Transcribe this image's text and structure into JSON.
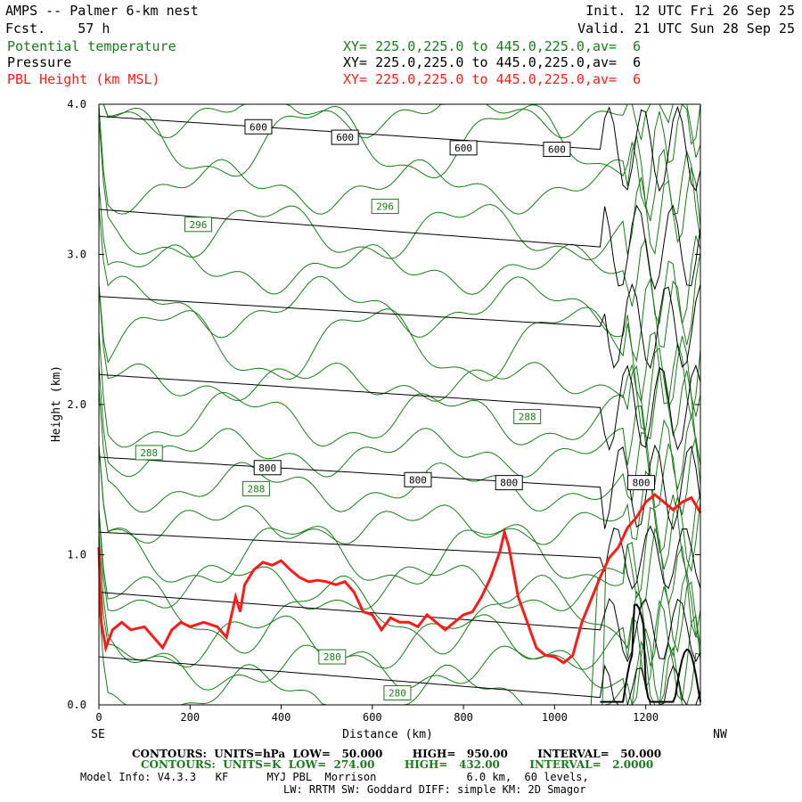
{
  "header": {
    "title": "AMPS -- Palmer 6-km nest",
    "fcst": "Fcst.    57 h",
    "init": "Init. 12 UTC Fri 26 Sep 25",
    "valid": "Valid. 21 UTC Sun 28 Sep 25",
    "rows": [
      {
        "field": "Potential temperature",
        "xy": "XY= 225.0,225.0 to 445.0,225.0,av=  6",
        "color": "#1a7a1a"
      },
      {
        "field": "Pressure",
        "xy": "XY= 225.0,225.0 to 445.0,225.0,av=  6",
        "color": "#000000"
      },
      {
        "field": "PBL Height (km MSL)",
        "xy": "XY= 225.0,225.0 to 445.0,225.0,av=  6",
        "color": "#ff1a1a"
      }
    ]
  },
  "chart_data": {
    "type": "line",
    "xlabel": "Distance (km)",
    "ylabel": "Height (km)",
    "xlim": [
      0,
      1320
    ],
    "ylim": [
      0,
      4
    ],
    "x_ticks": [
      "0",
      "200",
      "400",
      "600",
      "800",
      "1000",
      "1200"
    ],
    "y_ticks": [
      "0.0",
      "1.0",
      "2.0",
      "3.0",
      "4.0"
    ],
    "left_end_label": "SE",
    "right_end_label": "NW",
    "colors": {
      "pressure": "#000000",
      "theta": "#1a7a1a",
      "pbl": "#ff1a1a"
    },
    "pbl_height": {
      "name": "PBL Height (km MSL)",
      "x": [
        0,
        5,
        15,
        30,
        50,
        70,
        100,
        120,
        140,
        160,
        180,
        200,
        230,
        260,
        280,
        300,
        310,
        320,
        340,
        360,
        380,
        400,
        420,
        440,
        460,
        480,
        500,
        520,
        540,
        560,
        580,
        600,
        620,
        640,
        660,
        680,
        700,
        720,
        740,
        760,
        780,
        800,
        820,
        840,
        860,
        880,
        890,
        900,
        920,
        940,
        960,
        980,
        1000,
        1020,
        1040,
        1060,
        1080,
        1100,
        1120,
        1140,
        1160,
        1180,
        1200,
        1220,
        1240,
        1260,
        1280,
        1300,
        1320
      ],
      "y": [
        1.05,
        0.55,
        0.38,
        0.5,
        0.55,
        0.5,
        0.52,
        0.45,
        0.38,
        0.5,
        0.55,
        0.52,
        0.55,
        0.52,
        0.45,
        0.72,
        0.62,
        0.8,
        0.9,
        0.95,
        0.93,
        0.96,
        0.9,
        0.85,
        0.82,
        0.83,
        0.82,
        0.8,
        0.82,
        0.75,
        0.62,
        0.6,
        0.5,
        0.58,
        0.55,
        0.55,
        0.52,
        0.6,
        0.55,
        0.5,
        0.55,
        0.6,
        0.62,
        0.72,
        0.85,
        1.02,
        1.15,
        1.05,
        0.72,
        0.55,
        0.38,
        0.33,
        0.32,
        0.28,
        0.33,
        0.55,
        0.7,
        0.85,
        0.98,
        1.05,
        1.18,
        1.25,
        1.35,
        1.4,
        1.35,
        1.3,
        1.35,
        1.38,
        1.28
      ]
    },
    "pressure_labels": [
      {
        "text": "600",
        "x": 350,
        "y": 3.85
      },
      {
        "text": "600",
        "x": 540,
        "y": 3.78
      },
      {
        "text": "600",
        "x": 800,
        "y": 3.71
      },
      {
        "text": "600",
        "x": 1005,
        "y": 3.7
      },
      {
        "text": "800",
        "x": 370,
        "y": 1.58
      },
      {
        "text": "800",
        "x": 700,
        "y": 1.5
      },
      {
        "text": "800",
        "x": 900,
        "y": 1.48
      },
      {
        "text": "800",
        "x": 1190,
        "y": 1.48
      }
    ],
    "theta_labels": [
      {
        "text": "296",
        "x": 218,
        "y": 3.2
      },
      {
        "text": "296",
        "x": 628,
        "y": 3.32
      },
      {
        "text": "288",
        "x": 110,
        "y": 1.68
      },
      {
        "text": "288",
        "x": 345,
        "y": 1.44
      },
      {
        "text": "288",
        "x": 940,
        "y": 1.92
      },
      {
        "text": "280",
        "x": 512,
        "y": 0.32
      },
      {
        "text": "280",
        "x": 655,
        "y": 0.08
      }
    ]
  },
  "footer": {
    "contours_p": "CONTOURS:  UNITS=hPa  LOW=   50.000        HIGH=   950.00        INTERVAL=   50.000",
    "contours_t": "CONTOURS:  UNITS=K  LOW=  274.00        HIGH=   432.00        INTERVAL=   2.0000",
    "model1": "Model Info: V4.3.3   KF      MYJ PBL  Morrison              6.0 km,  60 levels,",
    "model2": "LW: RRTM SW: Goddard DIFF: simple KM: 2D Smagor"
  }
}
